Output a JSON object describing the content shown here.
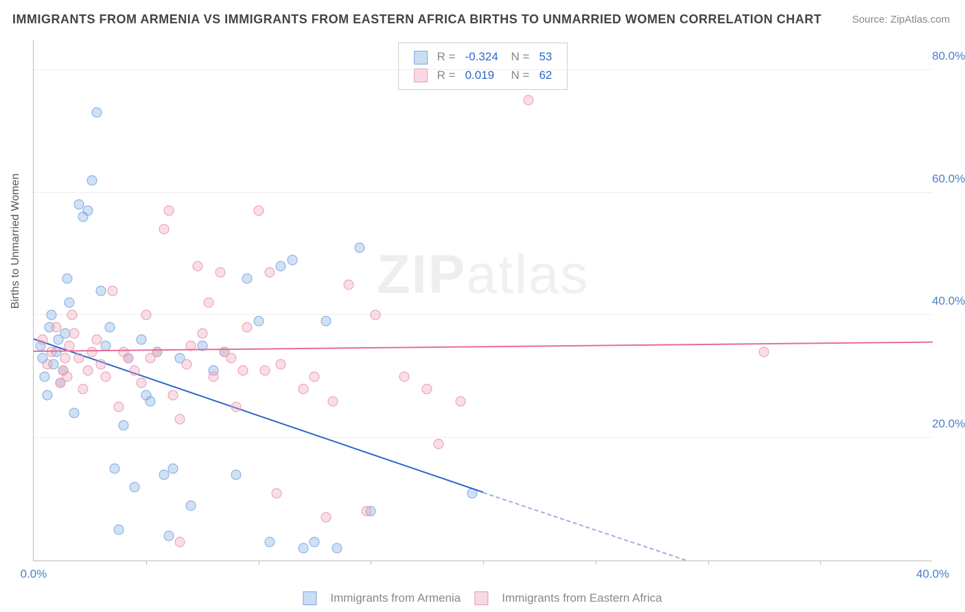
{
  "title": "IMMIGRANTS FROM ARMENIA VS IMMIGRANTS FROM EASTERN AFRICA BIRTHS TO UNMARRIED WOMEN CORRELATION CHART",
  "source_label": "Source: ZipAtlas.com",
  "ylabel": "Births to Unmarried Women",
  "watermark_bold": "ZIP",
  "watermark_thin": "atlas",
  "chart": {
    "type": "scatter",
    "xlim": [
      0,
      40
    ],
    "ylim": [
      0,
      85
    ],
    "xticks": [
      {
        "v": 0,
        "l": "0.0%"
      },
      {
        "v": 40,
        "l": "40.0%"
      }
    ],
    "xminor": [
      5,
      10,
      15,
      20,
      25,
      30,
      35
    ],
    "yticks": [
      {
        "v": 20,
        "l": "20.0%"
      },
      {
        "v": 40,
        "l": "40.0%"
      },
      {
        "v": 60,
        "l": "60.0%"
      },
      {
        "v": 80,
        "l": "80.0%"
      }
    ],
    "background_color": "#ffffff",
    "grid_color": "#eeeeee",
    "marker_size": 15,
    "series": [
      {
        "name": "Immigrants from Armenia",
        "color_fill": "rgba(120,170,225,0.35)",
        "color_stroke": "#7aa8df",
        "trend_color": "#2a67c8",
        "R": "-0.324",
        "N": "53",
        "trend_solid": {
          "x1": 0,
          "y1": 36,
          "x2": 20,
          "y2": 11
        },
        "trend_dash": {
          "x1": 20,
          "y1": 11,
          "x2": 29,
          "y2": 0
        },
        "points": [
          [
            0.3,
            35
          ],
          [
            0.4,
            33
          ],
          [
            0.5,
            30
          ],
          [
            0.6,
            27
          ],
          [
            0.7,
            38
          ],
          [
            0.8,
            40
          ],
          [
            0.9,
            32
          ],
          [
            1.0,
            34
          ],
          [
            1.1,
            36
          ],
          [
            1.2,
            29
          ],
          [
            1.3,
            31
          ],
          [
            1.4,
            37
          ],
          [
            1.5,
            46
          ],
          [
            1.6,
            42
          ],
          [
            1.8,
            24
          ],
          [
            2.0,
            58
          ],
          [
            2.2,
            56
          ],
          [
            2.4,
            57
          ],
          [
            2.6,
            62
          ],
          [
            2.8,
            73
          ],
          [
            3.0,
            44
          ],
          [
            3.2,
            35
          ],
          [
            3.4,
            38
          ],
          [
            3.6,
            15
          ],
          [
            3.8,
            5
          ],
          [
            4.0,
            22
          ],
          [
            4.2,
            33
          ],
          [
            4.5,
            12
          ],
          [
            4.8,
            36
          ],
          [
            5.0,
            27
          ],
          [
            5.2,
            26
          ],
          [
            5.5,
            34
          ],
          [
            5.8,
            14
          ],
          [
            6.0,
            4
          ],
          [
            6.2,
            15
          ],
          [
            6.5,
            33
          ],
          [
            7.0,
            9
          ],
          [
            7.5,
            35
          ],
          [
            8.0,
            31
          ],
          [
            8.5,
            34
          ],
          [
            9.0,
            14
          ],
          [
            9.5,
            46
          ],
          [
            10.0,
            39
          ],
          [
            10.5,
            3
          ],
          [
            11.0,
            48
          ],
          [
            11.5,
            49
          ],
          [
            12.0,
            2
          ],
          [
            12.5,
            3
          ],
          [
            13.0,
            39
          ],
          [
            13.5,
            2
          ],
          [
            14.5,
            51
          ],
          [
            15.0,
            8
          ],
          [
            19.5,
            11
          ]
        ]
      },
      {
        "name": "Immigrants from Eastern Africa",
        "color_fill": "rgba(240,160,180,0.35)",
        "color_stroke": "#e59ab0",
        "trend_color": "#e86a96",
        "R": "0.019",
        "N": "62",
        "trend_solid": {
          "x1": 0,
          "y1": 34,
          "x2": 40,
          "y2": 35.5
        },
        "trend_dash": null,
        "points": [
          [
            0.4,
            36
          ],
          [
            0.6,
            32
          ],
          [
            0.8,
            34
          ],
          [
            1.0,
            38
          ],
          [
            1.2,
            29
          ],
          [
            1.3,
            31
          ],
          [
            1.4,
            33
          ],
          [
            1.5,
            30
          ],
          [
            1.6,
            35
          ],
          [
            1.7,
            40
          ],
          [
            1.8,
            37
          ],
          [
            2.0,
            33
          ],
          [
            2.2,
            28
          ],
          [
            2.4,
            31
          ],
          [
            2.6,
            34
          ],
          [
            2.8,
            36
          ],
          [
            3.0,
            32
          ],
          [
            3.2,
            30
          ],
          [
            3.5,
            44
          ],
          [
            3.8,
            25
          ],
          [
            4.0,
            34
          ],
          [
            4.2,
            33
          ],
          [
            4.5,
            31
          ],
          [
            4.8,
            29
          ],
          [
            5.0,
            40
          ],
          [
            5.2,
            33
          ],
          [
            5.5,
            34
          ],
          [
            5.8,
            54
          ],
          [
            6.0,
            57
          ],
          [
            6.2,
            27
          ],
          [
            6.5,
            23
          ],
          [
            6.8,
            32
          ],
          [
            7.0,
            35
          ],
          [
            7.3,
            48
          ],
          [
            7.5,
            37
          ],
          [
            7.8,
            42
          ],
          [
            8.0,
            30
          ],
          [
            8.3,
            47
          ],
          [
            8.5,
            34
          ],
          [
            8.8,
            33
          ],
          [
            9.0,
            25
          ],
          [
            9.3,
            31
          ],
          [
            9.5,
            38
          ],
          [
            10.0,
            57
          ],
          [
            10.3,
            31
          ],
          [
            10.5,
            47
          ],
          [
            10.8,
            11
          ],
          [
            11.0,
            32
          ],
          [
            12.0,
            28
          ],
          [
            12.5,
            30
          ],
          [
            13.0,
            7
          ],
          [
            13.3,
            26
          ],
          [
            14.0,
            45
          ],
          [
            14.8,
            8
          ],
          [
            15.2,
            40
          ],
          [
            16.5,
            30
          ],
          [
            17.5,
            28
          ],
          [
            18.0,
            19
          ],
          [
            19.0,
            26
          ],
          [
            22.0,
            75
          ],
          [
            32.5,
            34
          ],
          [
            6.5,
            3
          ]
        ]
      }
    ]
  },
  "legend_top": {
    "rows": [
      {
        "sw": "blue",
        "R": "-0.324",
        "N": "53"
      },
      {
        "sw": "pink",
        "R": "0.019",
        "N": "62"
      }
    ]
  },
  "legend_bottom": [
    {
      "sw": "blue",
      "label": "Immigrants from Armenia"
    },
    {
      "sw": "pink",
      "label": "Immigrants from Eastern Africa"
    }
  ]
}
